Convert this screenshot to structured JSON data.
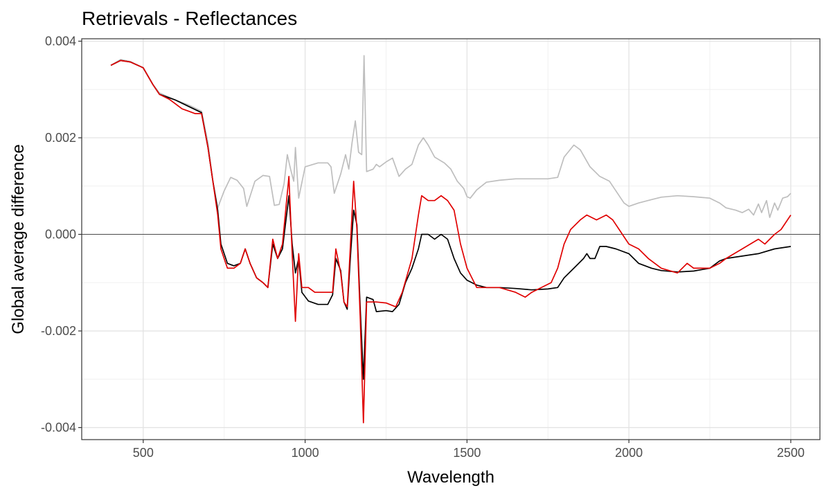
{
  "chart_data": {
    "type": "line",
    "title": "Retrievals - Reflectances",
    "xlabel": "Wavelength",
    "ylabel": "Global average difference",
    "xlim": [
      310,
      2590
    ],
    "ylim": [
      -0.00425,
      0.00405
    ],
    "x_ticks": [
      500,
      1000,
      1500,
      2000,
      2500
    ],
    "x_tick_labels": [
      "500",
      "1000",
      "1500",
      "2000",
      "2500"
    ],
    "y_ticks": [
      -0.004,
      -0.002,
      0.0,
      0.002,
      0.004
    ],
    "y_tick_labels": [
      "-0.004",
      "-0.002",
      "0.000",
      "0.002",
      "0.004"
    ],
    "grid": true,
    "reference_line": 0,
    "series": [
      {
        "color": "#bebebe",
        "points": [
          [
            400,
            0.0035
          ],
          [
            430,
            0.00362
          ],
          [
            460,
            0.00358
          ],
          [
            500,
            0.00345
          ],
          [
            530,
            0.0031
          ],
          [
            550,
            0.00293
          ],
          [
            600,
            0.00278
          ],
          [
            640,
            0.00268
          ],
          [
            680,
            0.00255
          ],
          [
            700,
            0.0019
          ],
          [
            715,
            0.0011
          ],
          [
            730,
            0.00055
          ],
          [
            750,
            0.0009
          ],
          [
            770,
            0.00118
          ],
          [
            790,
            0.00112
          ],
          [
            810,
            0.00095
          ],
          [
            820,
            0.00058
          ],
          [
            845,
            0.0011
          ],
          [
            870,
            0.00122
          ],
          [
            890,
            0.0012
          ],
          [
            905,
            0.0006
          ],
          [
            920,
            0.00062
          ],
          [
            935,
            0.00105
          ],
          [
            945,
            0.00165
          ],
          [
            955,
            0.00135
          ],
          [
            965,
            0.0011
          ],
          [
            970,
            0.0018
          ],
          [
            980,
            0.00075
          ],
          [
            1000,
            0.0014
          ],
          [
            1040,
            0.00148
          ],
          [
            1070,
            0.00148
          ],
          [
            1080,
            0.0014
          ],
          [
            1090,
            0.00085
          ],
          [
            1110,
            0.00125
          ],
          [
            1125,
            0.00165
          ],
          [
            1135,
            0.00135
          ],
          [
            1145,
            0.0019
          ],
          [
            1155,
            0.00235
          ],
          [
            1165,
            0.0017
          ],
          [
            1175,
            0.00165
          ],
          [
            1182,
            0.0037
          ],
          [
            1190,
            0.0013
          ],
          [
            1210,
            0.00135
          ],
          [
            1220,
            0.00145
          ],
          [
            1230,
            0.0014
          ],
          [
            1250,
            0.0015
          ],
          [
            1270,
            0.00158
          ],
          [
            1290,
            0.0012
          ],
          [
            1310,
            0.00135
          ],
          [
            1330,
            0.00145
          ],
          [
            1350,
            0.00185
          ],
          [
            1365,
            0.002
          ],
          [
            1380,
            0.00185
          ],
          [
            1400,
            0.0016
          ],
          [
            1430,
            0.00148
          ],
          [
            1450,
            0.00135
          ],
          [
            1470,
            0.0011
          ],
          [
            1490,
            0.00095
          ],
          [
            1500,
            0.00078
          ],
          [
            1510,
            0.00075
          ],
          [
            1530,
            0.00092
          ],
          [
            1560,
            0.00108
          ],
          [
            1600,
            0.00112
          ],
          [
            1650,
            0.00115
          ],
          [
            1700,
            0.00115
          ],
          [
            1750,
            0.00115
          ],
          [
            1780,
            0.00118
          ],
          [
            1800,
            0.0016
          ],
          [
            1830,
            0.00185
          ],
          [
            1850,
            0.00175
          ],
          [
            1880,
            0.0014
          ],
          [
            1910,
            0.0012
          ],
          [
            1940,
            0.0011
          ],
          [
            1960,
            0.0009
          ],
          [
            1985,
            0.00065
          ],
          [
            2000,
            0.00058
          ],
          [
            2030,
            0.00065
          ],
          [
            2070,
            0.00072
          ],
          [
            2100,
            0.00077
          ],
          [
            2150,
            0.0008
          ],
          [
            2200,
            0.00078
          ],
          [
            2250,
            0.00075
          ],
          [
            2280,
            0.00065
          ],
          [
            2300,
            0.00055
          ],
          [
            2330,
            0.0005
          ],
          [
            2350,
            0.00045
          ],
          [
            2370,
            0.00052
          ],
          [
            2385,
            0.0004
          ],
          [
            2400,
            0.00063
          ],
          [
            2410,
            0.00045
          ],
          [
            2425,
            0.0007
          ],
          [
            2435,
            0.00035
          ],
          [
            2450,
            0.00065
          ],
          [
            2460,
            0.0005
          ],
          [
            2475,
            0.00075
          ],
          [
            2490,
            0.00078
          ],
          [
            2500,
            0.00085
          ]
        ]
      },
      {
        "color": "#000000",
        "points": [
          [
            400,
            0.0035
          ],
          [
            430,
            0.0036
          ],
          [
            460,
            0.00357
          ],
          [
            500,
            0.00345
          ],
          [
            530,
            0.0031
          ],
          [
            550,
            0.0029
          ],
          [
            600,
            0.00278
          ],
          [
            640,
            0.00265
          ],
          [
            680,
            0.00252
          ],
          [
            700,
            0.0018
          ],
          [
            715,
            0.0011
          ],
          [
            730,
            0.0005
          ],
          [
            740,
            -0.0002
          ],
          [
            760,
            -0.0006
          ],
          [
            780,
            -0.00065
          ],
          [
            800,
            -0.0006
          ],
          [
            815,
            -0.0003
          ],
          [
            830,
            -0.0006
          ],
          [
            850,
            -0.0009
          ],
          [
            870,
            -0.001
          ],
          [
            885,
            -0.0011
          ],
          [
            900,
            -0.0002
          ],
          [
            915,
            -0.0005
          ],
          [
            930,
            -0.0003
          ],
          [
            950,
            0.0008
          ],
          [
            960,
            -0.0002
          ],
          [
            970,
            -0.0008
          ],
          [
            980,
            -0.0005
          ],
          [
            990,
            -0.0012
          ],
          [
            1010,
            -0.00138
          ],
          [
            1040,
            -0.00145
          ],
          [
            1070,
            -0.00145
          ],
          [
            1085,
            -0.00125
          ],
          [
            1095,
            -0.0005
          ],
          [
            1110,
            -0.00075
          ],
          [
            1120,
            -0.0014
          ],
          [
            1130,
            -0.00155
          ],
          [
            1140,
            -0.00045
          ],
          [
            1150,
            0.0005
          ],
          [
            1160,
            0.0002
          ],
          [
            1170,
            -0.0015
          ],
          [
            1180,
            -0.003
          ],
          [
            1190,
            -0.0013
          ],
          [
            1210,
            -0.00135
          ],
          [
            1220,
            -0.0016
          ],
          [
            1250,
            -0.00158
          ],
          [
            1270,
            -0.0016
          ],
          [
            1290,
            -0.00145
          ],
          [
            1310,
            -0.001
          ],
          [
            1330,
            -0.0007
          ],
          [
            1350,
            -0.0003
          ],
          [
            1360,
            0.0
          ],
          [
            1380,
            0.0
          ],
          [
            1400,
            -0.0001
          ],
          [
            1420,
            0.0
          ],
          [
            1440,
            -0.0001
          ],
          [
            1460,
            -0.0005
          ],
          [
            1480,
            -0.0008
          ],
          [
            1500,
            -0.00095
          ],
          [
            1530,
            -0.00105
          ],
          [
            1560,
            -0.0011
          ],
          [
            1600,
            -0.0011
          ],
          [
            1650,
            -0.00112
          ],
          [
            1700,
            -0.00115
          ],
          [
            1750,
            -0.00113
          ],
          [
            1780,
            -0.0011
          ],
          [
            1800,
            -0.0009
          ],
          [
            1830,
            -0.0007
          ],
          [
            1860,
            -0.0005
          ],
          [
            1870,
            -0.0004
          ],
          [
            1880,
            -0.0005
          ],
          [
            1895,
            -0.0005
          ],
          [
            1910,
            -0.00025
          ],
          [
            1930,
            -0.00025
          ],
          [
            1960,
            -0.0003
          ],
          [
            2000,
            -0.0004
          ],
          [
            2030,
            -0.0006
          ],
          [
            2070,
            -0.0007
          ],
          [
            2100,
            -0.00075
          ],
          [
            2150,
            -0.00078
          ],
          [
            2200,
            -0.00076
          ],
          [
            2250,
            -0.0007
          ],
          [
            2280,
            -0.00055
          ],
          [
            2300,
            -0.0005
          ],
          [
            2350,
            -0.00045
          ],
          [
            2400,
            -0.0004
          ],
          [
            2450,
            -0.0003
          ],
          [
            2500,
            -0.00025
          ]
        ]
      },
      {
        "color": "#e00000",
        "points": [
          [
            400,
            0.0035
          ],
          [
            430,
            0.0036
          ],
          [
            460,
            0.00357
          ],
          [
            500,
            0.00345
          ],
          [
            530,
            0.0031
          ],
          [
            550,
            0.0029
          ],
          [
            580,
            0.0028
          ],
          [
            600,
            0.0027
          ],
          [
            620,
            0.0026
          ],
          [
            640,
            0.00255
          ],
          [
            660,
            0.0025
          ],
          [
            680,
            0.0025
          ],
          [
            700,
            0.0018
          ],
          [
            715,
            0.0011
          ],
          [
            730,
            0.0004
          ],
          [
            740,
            -0.0003
          ],
          [
            760,
            -0.0007
          ],
          [
            780,
            -0.0007
          ],
          [
            800,
            -0.0006
          ],
          [
            815,
            -0.0003
          ],
          [
            830,
            -0.0006
          ],
          [
            850,
            -0.0009
          ],
          [
            870,
            -0.001
          ],
          [
            885,
            -0.0011
          ],
          [
            900,
            -0.0001
          ],
          [
            915,
            -0.0005
          ],
          [
            930,
            -0.0002
          ],
          [
            950,
            0.0012
          ],
          [
            960,
            -0.0004
          ],
          [
            970,
            -0.0018
          ],
          [
            980,
            -0.0004
          ],
          [
            990,
            -0.0011
          ],
          [
            1010,
            -0.0011
          ],
          [
            1030,
            -0.0012
          ],
          [
            1060,
            -0.0012
          ],
          [
            1085,
            -0.0012
          ],
          [
            1095,
            -0.0003
          ],
          [
            1110,
            -0.0008
          ],
          [
            1120,
            -0.0014
          ],
          [
            1130,
            -0.0015
          ],
          [
            1140,
            -0.0002
          ],
          [
            1150,
            0.0011
          ],
          [
            1160,
            0.0001
          ],
          [
            1170,
            -0.0017
          ],
          [
            1180,
            -0.0039
          ],
          [
            1190,
            -0.0014
          ],
          [
            1220,
            -0.0014
          ],
          [
            1250,
            -0.00142
          ],
          [
            1280,
            -0.0015
          ],
          [
            1300,
            -0.0012
          ],
          [
            1330,
            -0.0005
          ],
          [
            1350,
            0.0004
          ],
          [
            1360,
            0.0008
          ],
          [
            1380,
            0.0007
          ],
          [
            1400,
            0.0007
          ],
          [
            1420,
            0.0008
          ],
          [
            1440,
            0.0007
          ],
          [
            1460,
            0.0005
          ],
          [
            1480,
            -0.0002
          ],
          [
            1500,
            -0.0007
          ],
          [
            1530,
            -0.0011
          ],
          [
            1560,
            -0.0011
          ],
          [
            1600,
            -0.0011
          ],
          [
            1650,
            -0.0012
          ],
          [
            1680,
            -0.0013
          ],
          [
            1700,
            -0.0012
          ],
          [
            1730,
            -0.0011
          ],
          [
            1760,
            -0.001
          ],
          [
            1780,
            -0.0007
          ],
          [
            1800,
            -0.0002
          ],
          [
            1820,
            0.0001
          ],
          [
            1850,
            0.0003
          ],
          [
            1870,
            0.0004
          ],
          [
            1900,
            0.0003
          ],
          [
            1930,
            0.0004
          ],
          [
            1950,
            0.0003
          ],
          [
            1970,
            0.0001
          ],
          [
            2000,
            -0.0002
          ],
          [
            2030,
            -0.0003
          ],
          [
            2060,
            -0.0005
          ],
          [
            2100,
            -0.0007
          ],
          [
            2150,
            -0.0008
          ],
          [
            2180,
            -0.0006
          ],
          [
            2200,
            -0.0007
          ],
          [
            2250,
            -0.0007
          ],
          [
            2280,
            -0.0006
          ],
          [
            2300,
            -0.0005
          ],
          [
            2350,
            -0.0003
          ],
          [
            2400,
            -0.0001
          ],
          [
            2420,
            -0.0002
          ],
          [
            2450,
            0.0
          ],
          [
            2470,
            0.0001
          ],
          [
            2490,
            0.0003
          ],
          [
            2500,
            0.0004
          ]
        ]
      }
    ]
  }
}
